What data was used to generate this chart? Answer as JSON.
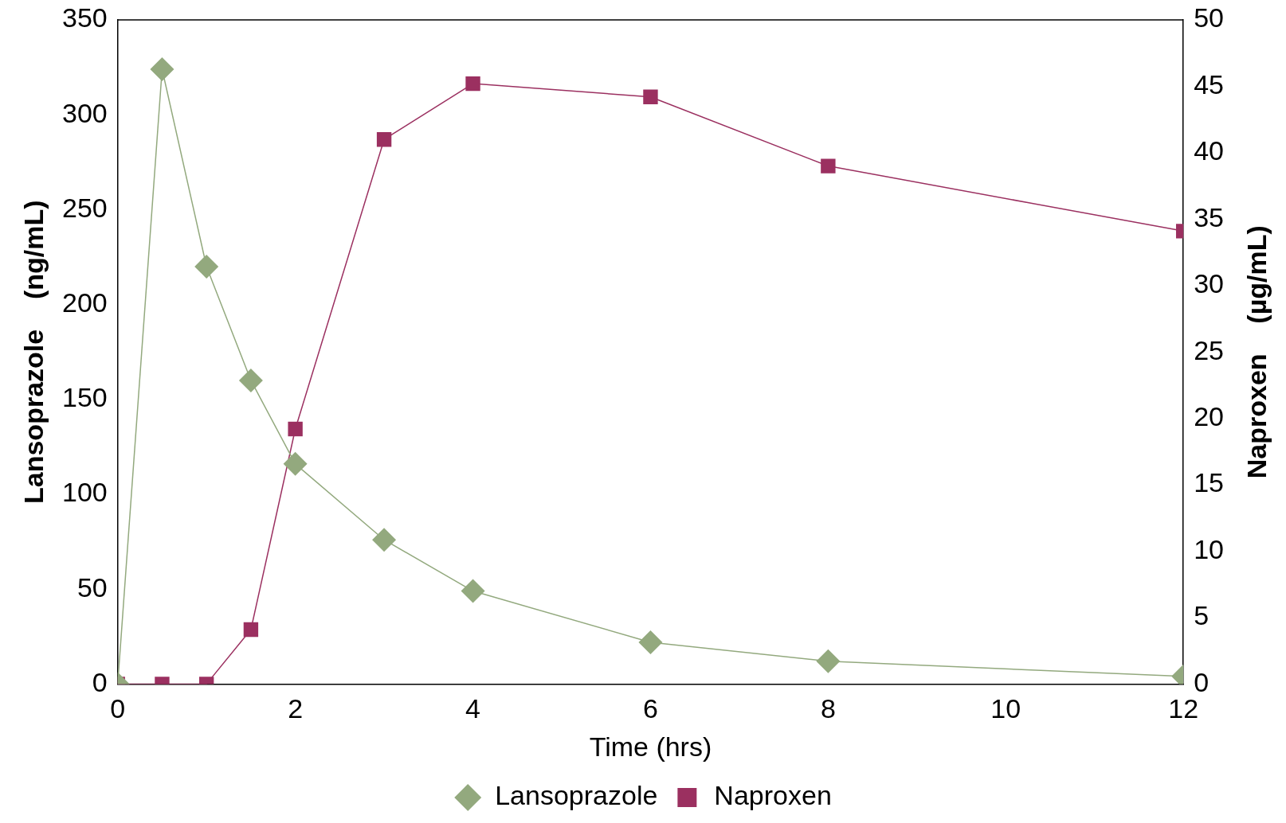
{
  "chart_data": {
    "type": "line",
    "xlabel": "Time (hrs)",
    "ylabel": "Lansoprazole    (ng/mL)",
    "y2label": "Naproxen    (µg/mL)",
    "xlim": [
      0,
      12
    ],
    "xticks": [
      0,
      2,
      4,
      6,
      8,
      10,
      12
    ],
    "ylim": [
      0,
      350
    ],
    "yticks": [
      0,
      50,
      100,
      150,
      200,
      250,
      300,
      350
    ],
    "y2lim": [
      0,
      50
    ],
    "y2ticks": [
      0,
      5,
      10,
      15,
      20,
      25,
      30,
      35,
      40,
      45,
      50
    ],
    "grid": false,
    "legend": "bottom",
    "line_style": "solid",
    "series": [
      {
        "name": "Lansoprazole",
        "color": "#93a97e",
        "marker": "diamond",
        "x": [
          0,
          0.5,
          1,
          1.5,
          2,
          3,
          4,
          6,
          8,
          12
        ],
        "values": [
          0,
          324,
          220,
          160,
          116,
          76,
          49,
          22,
          12,
          4
        ]
      },
      {
        "name": "Naproxen",
        "color": "#9b3060",
        "marker": "square",
        "axis": "y2",
        "x": [
          0,
          0.5,
          1,
          1.5,
          2,
          3,
          4,
          6,
          8,
          12
        ],
        "values": [
          0,
          0,
          0,
          4.1,
          19.2,
          41,
          45.2,
          44.2,
          39,
          34.1
        ]
      }
    ]
  }
}
